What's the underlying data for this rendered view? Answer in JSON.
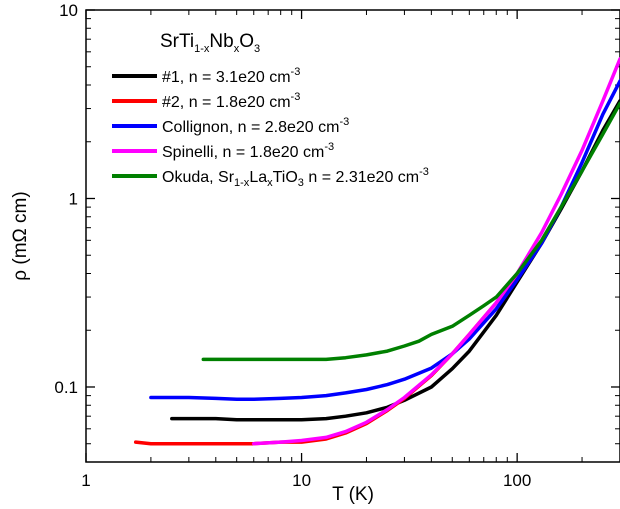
{
  "chart_data": {
    "type": "line",
    "xlabel": "T (K)",
    "ylabel": "ρ (mΩ cm)",
    "xscale": "log",
    "yscale": "log",
    "xlim": [
      1,
      300
    ],
    "ylim": [
      0.04,
      10
    ],
    "x_ticks": [
      {
        "value": 1,
        "label": "1"
      },
      {
        "value": 10,
        "label": "10"
      },
      {
        "value": 100,
        "label": "100"
      }
    ],
    "y_ticks": [
      {
        "value": 0.1,
        "label": "0.1"
      },
      {
        "value": 1,
        "label": "1"
      },
      {
        "value": 10,
        "label": "10"
      }
    ],
    "grid": false,
    "legend_position": "top-left",
    "legend_title": {
      "base": "SrTi",
      "sub1": "1-x",
      "mid": "Nb",
      "sub2": "x",
      "end": "O",
      "sub3": "3"
    },
    "series": [
      {
        "name": "#1, n = 3.1e20 cm-3",
        "legend": {
          "text": "#1, n = 3.1e20 cm",
          "sup": "-3",
          "subs": []
        },
        "color": "#000000",
        "x": [
          2.5,
          3,
          4,
          5,
          6,
          8,
          10,
          13,
          16,
          20,
          25,
          30,
          40,
          50,
          60,
          80,
          100,
          130,
          160,
          200,
          250,
          300
        ],
        "y": [
          0.068,
          0.068,
          0.068,
          0.067,
          0.067,
          0.067,
          0.067,
          0.068,
          0.07,
          0.073,
          0.078,
          0.085,
          0.1,
          0.125,
          0.155,
          0.24,
          0.36,
          0.58,
          0.88,
          1.4,
          2.3,
          3.3
        ]
      },
      {
        "name": "#2, n = 1.8e20 cm-3",
        "legend": {
          "text": "#2, n = 1.8e20 cm",
          "sup": "-3",
          "subs": []
        },
        "color": "#ff0000",
        "x": [
          1.7,
          2,
          3,
          4,
          5,
          6,
          8,
          10,
          13,
          16,
          20,
          25,
          30,
          40,
          50,
          60,
          80,
          100
        ],
        "y": [
          0.051,
          0.05,
          0.05,
          0.05,
          0.05,
          0.05,
          0.051,
          0.051,
          0.053,
          0.057,
          0.064,
          0.075,
          0.087,
          0.115,
          0.15,
          0.19,
          0.28,
          0.39
        ]
      },
      {
        "name": "Collignon, n = 2.8e20 cm-3",
        "legend": {
          "text": "Collignon, n = 2.8e20 cm",
          "sup": "-3",
          "subs": []
        },
        "color": "#0000ff",
        "x": [
          2,
          3,
          4,
          5,
          6,
          8,
          10,
          13,
          16,
          20,
          25,
          30,
          40,
          50,
          60,
          80,
          100,
          130,
          160,
          200,
          250,
          300
        ],
        "y": [
          0.088,
          0.088,
          0.087,
          0.086,
          0.086,
          0.087,
          0.088,
          0.09,
          0.093,
          0.097,
          0.103,
          0.11,
          0.126,
          0.15,
          0.18,
          0.26,
          0.37,
          0.58,
          0.9,
          1.55,
          2.8,
          4.2
        ]
      },
      {
        "name": "Spinelli, n = 1.8e20 cm-3",
        "legend": {
          "text": "Spinelli, n = 1.8e20 cm",
          "sup": "-3",
          "subs": []
        },
        "color": "#ff00ff",
        "x": [
          6,
          8,
          10,
          13,
          16,
          20,
          25,
          30,
          40,
          50,
          60,
          80,
          100,
          130,
          160,
          200,
          250,
          300
        ],
        "y": [
          0.05,
          0.051,
          0.052,
          0.054,
          0.058,
          0.065,
          0.076,
          0.088,
          0.116,
          0.15,
          0.19,
          0.28,
          0.4,
          0.66,
          1.05,
          1.8,
          3.3,
          5.5
        ]
      },
      {
        "name": "Okuda, Sr1-xLaxTiO3 n = 2.31e20 cm-3",
        "legend": {
          "text": "Okuda, Sr",
          "subs": [
            "1-x",
            "x",
            "3"
          ],
          "mid": [
            "La",
            "TiO",
            "  n = 2.31e20 cm"
          ],
          "sup": "-3"
        },
        "color": "#008000",
        "x": [
          3.5,
          5,
          7,
          10,
          13,
          16,
          20,
          25,
          30,
          35,
          40,
          50,
          60,
          70,
          80,
          100,
          130,
          160,
          200,
          250,
          300
        ],
        "y": [
          0.14,
          0.14,
          0.14,
          0.14,
          0.14,
          0.143,
          0.148,
          0.155,
          0.165,
          0.175,
          0.19,
          0.21,
          0.24,
          0.27,
          0.3,
          0.4,
          0.6,
          0.9,
          1.4,
          2.2,
          3.2
        ]
      }
    ]
  }
}
